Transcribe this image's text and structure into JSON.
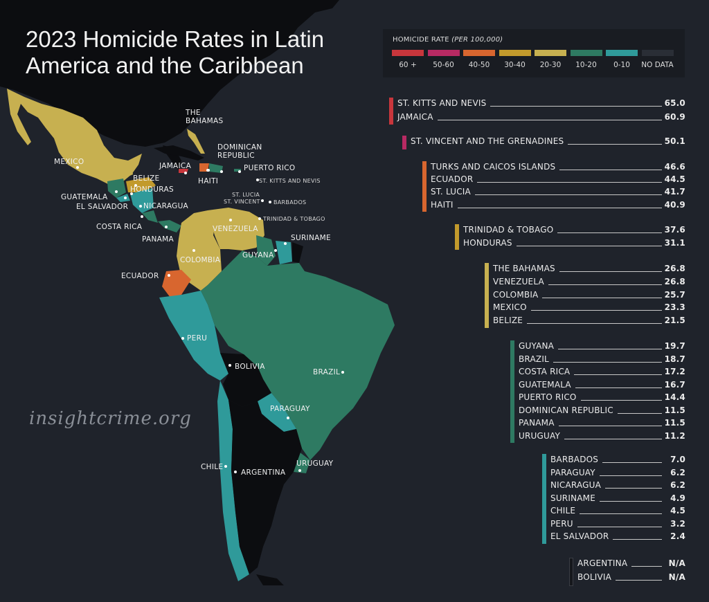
{
  "title_line1": "2023 Homicide Rates in Latin",
  "title_line2": "America and the Caribbean",
  "watermark": "insightcrime.org",
  "legend": {
    "title": "HOMICIDE RATE",
    "title_unit": "(PER 100,000)",
    "items": [
      {
        "label": "60 +",
        "color": "#c8363c"
      },
      {
        "label": "50-60",
        "color": "#b82a63"
      },
      {
        "label": "40-50",
        "color": "#d8662f"
      },
      {
        "label": "30-40",
        "color": "#c29a2c"
      },
      {
        "label": "20-30",
        "color": "#c7b050"
      },
      {
        "label": "10-20",
        "color": "#2e7a62"
      },
      {
        "label": "0-10",
        "color": "#2f9a9a"
      },
      {
        "label": "NO DATA",
        "color": "#2a2e36"
      }
    ]
  },
  "groups": [
    {
      "color": "#c8363c",
      "rows": [
        {
          "name": "ST. KITTS AND NEVIS",
          "value": "65.0"
        },
        {
          "name": "JAMAICA",
          "value": "60.9"
        }
      ]
    },
    {
      "color": "#b82a63",
      "rows": [
        {
          "name": "ST. VINCENT AND THE GRENADINES",
          "value": "50.1"
        }
      ]
    },
    {
      "color": "#d8662f",
      "rows": [
        {
          "name": "TURKS AND CAICOS ISLANDS",
          "value": "46.6"
        },
        {
          "name": "ECUADOR",
          "value": "44.5"
        },
        {
          "name": "ST. LUCIA",
          "value": "41.7"
        },
        {
          "name": "HAITI",
          "value": "40.9"
        }
      ]
    },
    {
      "color": "#c29a2c",
      "rows": [
        {
          "name": "TRINIDAD & TOBAGO",
          "value": "37.6"
        },
        {
          "name": "HONDURAS",
          "value": "31.1"
        }
      ]
    },
    {
      "color": "#c7b050",
      "rows": [
        {
          "name": "THE BAHAMAS",
          "value": "26.8"
        },
        {
          "name": "VENEZUELA",
          "value": "26.8"
        },
        {
          "name": "COLOMBIA",
          "value": "25.7"
        },
        {
          "name": "MEXICO",
          "value": "23.3"
        },
        {
          "name": "BELIZE",
          "value": "21.5"
        }
      ]
    },
    {
      "color": "#2e7a62",
      "rows": [
        {
          "name": "GUYANA",
          "value": "19.7"
        },
        {
          "name": "BRAZIL",
          "value": "18.7"
        },
        {
          "name": "COSTA RICA",
          "value": "17.2"
        },
        {
          "name": "GUATEMALA",
          "value": "16.7"
        },
        {
          "name": "PUERTO RICO",
          "value": "14.4"
        },
        {
          "name": "DOMINICAN REPUBLIC",
          "value": "11.5"
        },
        {
          "name": "PANAMA",
          "value": "11.5"
        },
        {
          "name": "URUGUAY",
          "value": "11.2"
        }
      ]
    },
    {
      "color": "#2f9a9a",
      "rows": [
        {
          "name": "BARBADOS",
          "value": "7.0"
        },
        {
          "name": "PARAGUAY",
          "value": "6.2"
        },
        {
          "name": "NICARAGUA",
          "value": "6.2"
        },
        {
          "name": "SURINAME",
          "value": "4.9"
        },
        {
          "name": "CHILE",
          "value": "4.5"
        },
        {
          "name": "PERU",
          "value": "3.2"
        },
        {
          "name": "EL SALVADOR",
          "value": "2.4"
        }
      ]
    },
    {
      "color": "#15171c",
      "rows": [
        {
          "name": "ARGENTINA",
          "value": "N/A"
        },
        {
          "name": "BOLIVIA",
          "value": "N/A"
        }
      ]
    }
  ],
  "map_labels": [
    {
      "text": "THE",
      "size": "normal"
    },
    {
      "text": "BAHAMAS",
      "size": "normal"
    },
    {
      "text": "DOMINICAN",
      "size": "normal"
    },
    {
      "text": "REPUBLIC",
      "size": "normal"
    },
    {
      "text": "JAMAICA",
      "size": "normal"
    },
    {
      "text": "HAITI",
      "size": "normal"
    },
    {
      "text": "PUERTO RICO",
      "size": "normal"
    },
    {
      "text": "ST. KITTS AND NEVIS",
      "size": "small"
    },
    {
      "text": "ST. LUCIA",
      "size": "small"
    },
    {
      "text": "ST. VINCENT",
      "size": "small"
    },
    {
      "text": "BARBADOS",
      "size": "small"
    },
    {
      "text": "TRINIDAD & TOBAGO",
      "size": "small"
    },
    {
      "text": "MEXICO",
      "size": "normal"
    },
    {
      "text": "BELIZE",
      "size": "normal"
    },
    {
      "text": "HONDURAS",
      "size": "normal"
    },
    {
      "text": "GUATEMALA",
      "size": "normal"
    },
    {
      "text": "EL SALVADOR",
      "size": "normal"
    },
    {
      "text": "NICARAGUA",
      "size": "normal"
    },
    {
      "text": "COSTA RICA",
      "size": "normal"
    },
    {
      "text": "PANAMA",
      "size": "normal"
    },
    {
      "text": "VENEZUELA",
      "size": "normal"
    },
    {
      "text": "SURINAME",
      "size": "normal"
    },
    {
      "text": "GUYANA",
      "size": "normal"
    },
    {
      "text": "COLOMBIA",
      "size": "normal"
    },
    {
      "text": "ECUADOR",
      "size": "normal"
    },
    {
      "text": "PERU",
      "size": "normal"
    },
    {
      "text": "BOLIVIA",
      "size": "normal"
    },
    {
      "text": "BRAZIL",
      "size": "normal"
    },
    {
      "text": "PARAGUAY",
      "size": "normal"
    },
    {
      "text": "CHILE",
      "size": "normal"
    },
    {
      "text": "ARGENTINA",
      "size": "normal"
    },
    {
      "text": "URUGUAY",
      "size": "normal"
    }
  ]
}
